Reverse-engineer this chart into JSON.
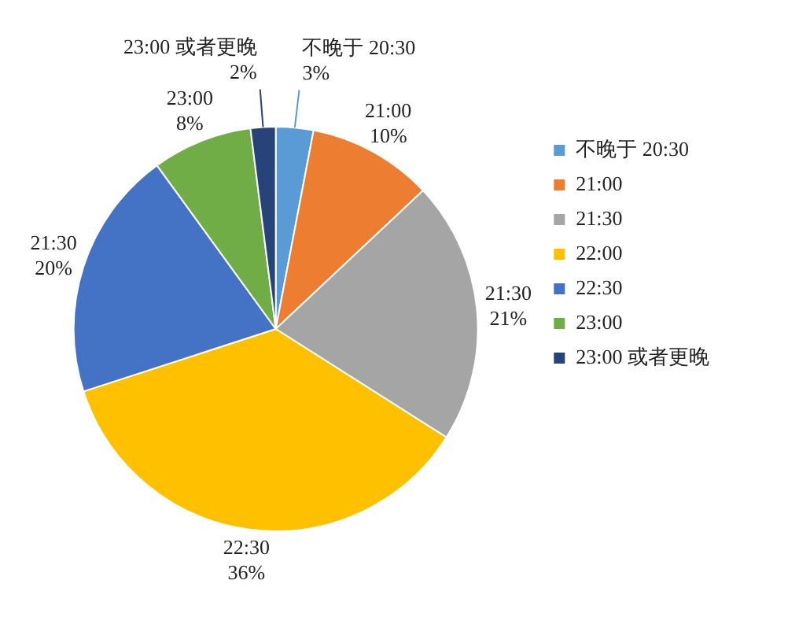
{
  "chart_data": {
    "type": "pie",
    "categories": [
      "不晚于 20:30",
      "21:00",
      "21:30",
      "22:00",
      "22:30",
      "23:00",
      "23:00 或者更晚"
    ],
    "values": [
      3,
      10,
      21,
      36,
      20,
      8,
      2
    ],
    "colors": [
      "#5b9bd5",
      "#ed7d31",
      "#a5a5a5",
      "#ffc000",
      "#4472c4",
      "#70ad47",
      "#264478"
    ],
    "value_labels": [
      "不晚于 20:30 3%",
      "21:00 10%",
      "21:30 21%",
      "22:30 36%",
      "21:30 20%",
      "23:00 8%",
      "23:00 或者更晚 2%"
    ],
    "legend": "top right"
  }
}
